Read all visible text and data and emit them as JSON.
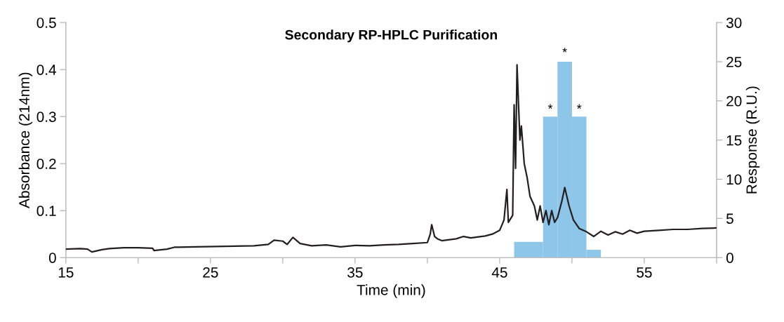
{
  "chart_data": {
    "type": "line",
    "title": "Secondary RP-HPLC Purification",
    "xlabel": "Time (min)",
    "ylabel": "Absorbance (214nm)",
    "y2label": "Response (R.U.)",
    "series": [
      {
        "color": "#231f20",
        "x": [
          15,
          16,
          16.5,
          16.8,
          17.5,
          18,
          19,
          20,
          21,
          21.1,
          22,
          22.5,
          24,
          26,
          28,
          29,
          29.4,
          30,
          30.3,
          30.7,
          31.2,
          32,
          33,
          34,
          35,
          36,
          37,
          38,
          39,
          40,
          40.2,
          40.3,
          40.5,
          40.7,
          41,
          42,
          42.5,
          43,
          44,
          44.5,
          45,
          45.3,
          45.5,
          45.6,
          45.9,
          46.0,
          46.1,
          46.2,
          46.4,
          46.5,
          46.7,
          46.9,
          47.1,
          47.4,
          47.6,
          47.8,
          48.0,
          48.2,
          48.4,
          48.6,
          48.8,
          49.0,
          49.3,
          49.5,
          49.8,
          50.1,
          50.5,
          51,
          51.5,
          52,
          52.5,
          53,
          53.5,
          54,
          54.5,
          55,
          56,
          57,
          58,
          59,
          60
        ],
        "values": [
          0.018,
          0.019,
          0.018,
          0.012,
          0.017,
          0.019,
          0.021,
          0.021,
          0.02,
          0.015,
          0.018,
          0.022,
          0.023,
          0.024,
          0.025,
          0.028,
          0.037,
          0.035,
          0.028,
          0.043,
          0.03,
          0.025,
          0.027,
          0.023,
          0.026,
          0.025,
          0.027,
          0.028,
          0.03,
          0.032,
          0.05,
          0.07,
          0.045,
          0.04,
          0.036,
          0.04,
          0.045,
          0.042,
          0.046,
          0.05,
          0.058,
          0.08,
          0.145,
          0.075,
          0.09,
          0.325,
          0.19,
          0.41,
          0.25,
          0.28,
          0.2,
          0.17,
          0.13,
          0.11,
          0.08,
          0.11,
          0.075,
          0.1,
          0.07,
          0.1,
          0.075,
          0.085,
          0.12,
          0.149,
          0.11,
          0.08,
          0.062,
          0.055,
          0.045,
          0.056,
          0.048,
          0.055,
          0.05,
          0.058,
          0.052,
          0.056,
          0.058,
          0.06,
          0.06,
          0.062,
          0.063
        ]
      },
      {
        "type": "histogram",
        "axis": "y2",
        "color": "#8ec6ea",
        "bins": [
          46,
          48,
          49,
          50,
          51,
          52
        ],
        "values": [
          2,
          18,
          25,
          18,
          1
        ]
      }
    ],
    "annotations": [
      {
        "text": "*",
        "x": 48.5,
        "y": 0.3
      },
      {
        "text": "*",
        "x": 49.5,
        "y": 0.42
      },
      {
        "text": "*",
        "x": 50.5,
        "y": 0.3
      }
    ],
    "xlim": [
      15,
      60
    ],
    "xticks": [
      15,
      {
        "value": 20,
        "label": null
      },
      25,
      {
        "value": 30,
        "label": null
      },
      35,
      {
        "value": 40,
        "label": null
      },
      45,
      {
        "value": 50,
        "label": null
      },
      55,
      {
        "value": 60,
        "label": null
      }
    ],
    "ylim": [
      0,
      0.5
    ],
    "yticks": [
      0,
      0.1,
      0.2,
      0.3,
      0.4,
      0.5
    ],
    "y2lim": [
      0,
      30
    ],
    "y2ticks": [
      0,
      5,
      10,
      15,
      20,
      25,
      30
    ],
    "grid": false,
    "legend": false
  }
}
